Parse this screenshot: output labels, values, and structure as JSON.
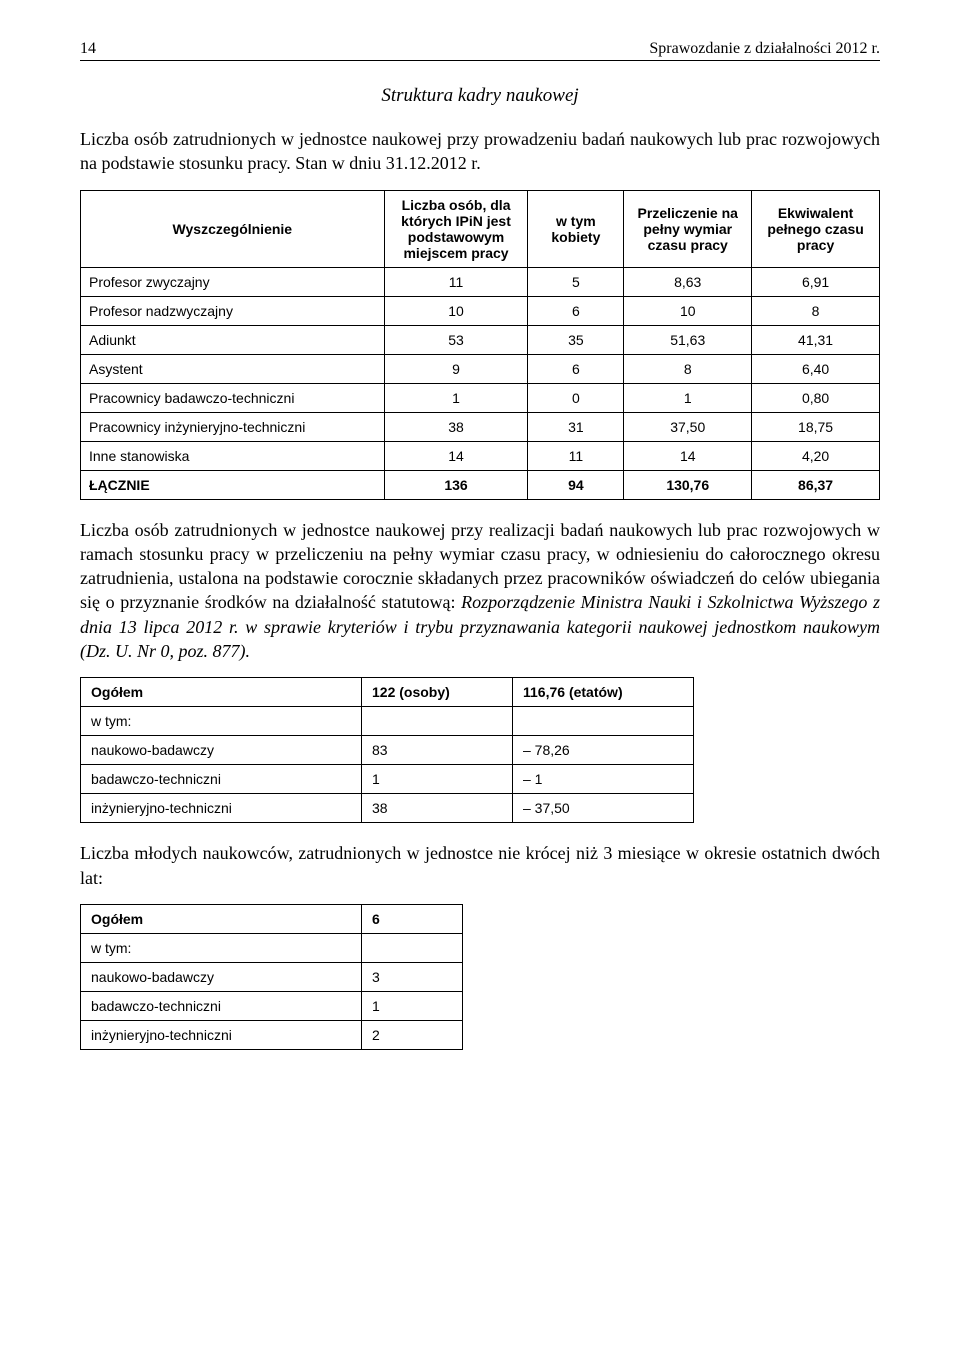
{
  "header": {
    "page_number": "14",
    "running_title": "Sprawozdanie z działalności 2012 r."
  },
  "section_title": "Struktura kadry naukowej",
  "intro_paragraph": "Liczba osób zatrudnionych w jednostce naukowej przy prowadzeniu badań naukowych lub prac rozwojowych na podstawie stosunku pracy. Stan w dniu 31.12.2012 r.",
  "table1": {
    "headers": {
      "col1": "Wyszczególnienie",
      "col2": "Liczba osób, dla których IPiN jest podstawowym miejscem pracy",
      "col3": "w tym kobiety",
      "col4": "Przeliczenie na pełny wymiar czasu pracy",
      "col5": "Ekwiwalent pełnego czasu pracy"
    },
    "rows": [
      {
        "label": "Profesor zwyczajny",
        "c2": "11",
        "c3": "5",
        "c4": "8,63",
        "c5": "6,91"
      },
      {
        "label": "Profesor nadzwyczajny",
        "c2": "10",
        "c3": "6",
        "c4": "10",
        "c5": "8"
      },
      {
        "label": "Adiunkt",
        "c2": "53",
        "c3": "35",
        "c4": "51,63",
        "c5": "41,31"
      },
      {
        "label": "Asystent",
        "c2": "9",
        "c3": "6",
        "c4": "8",
        "c5": "6,40"
      },
      {
        "label": "Pracownicy badawczo-techniczni",
        "c2": "1",
        "c3": "0",
        "c4": "1",
        "c5": "0,80"
      },
      {
        "label": "Pracownicy inżynieryjno-techniczni",
        "c2": "38",
        "c3": "31",
        "c4": "37,50",
        "c5": "18,75"
      },
      {
        "label": "Inne stanowiska",
        "c2": "14",
        "c3": "11",
        "c4": "14",
        "c5": "4,20"
      }
    ],
    "total": {
      "label": "ŁĄCZNIE",
      "c2": "136",
      "c3": "94",
      "c4": "130,76",
      "c5": "86,37"
    }
  },
  "mid_para_plain": "Liczba osób zatrudnionych w jednostce naukowej przy realizacji badań naukowych lub prac rozwojowych w ramach stosunku pracy w przeliczeniu na pełny wymiar czasu pracy, w odniesieniu do całorocznego okresu zatrudnienia, ustalona na podstawie corocznie składanych przez pracowników oświadczeń do celów ubiegania się o przyznanie środków na działalność statutową: ",
  "mid_para_italic": "Rozporządzenie Ministra Nauki i Szkolnictwa Wyższego z dnia 13 lipca 2012 r. w sprawie kryteriów i trybu przyznawania kategorii naukowej jednostkom naukowym (Dz. U. Nr 0, poz. 877).",
  "table2": {
    "col_widths": {
      "c1": "260px",
      "c2": "130px",
      "c3": "160px"
    },
    "rows": [
      {
        "label": "Ogółem",
        "v1": "122 (osoby)",
        "v2": "116,76 (etatów)",
        "bold": true
      },
      {
        "label": "w tym:",
        "v1": "",
        "v2": ""
      },
      {
        "label": "naukowo-badawczy",
        "v1": "83",
        "v2": "– 78,26"
      },
      {
        "label": "badawczo-techniczni",
        "v1": "1",
        "v2": "– 1"
      },
      {
        "label": "inżynieryjno-techniczni",
        "v1": "38",
        "v2": "– 37,50"
      }
    ]
  },
  "young_para": "Liczba młodych naukowców, zatrudnionych w jednostce nie krócej niż 3 miesiące w okresie ostatnich dwóch lat:",
  "table3": {
    "col_widths": {
      "c1": "260px",
      "c2": "80px"
    },
    "rows": [
      {
        "label": "Ogółem",
        "v": "6",
        "bold": true
      },
      {
        "label": "w tym:",
        "v": ""
      },
      {
        "label": "naukowo-badawczy",
        "v": "3"
      },
      {
        "label": "badawczo-techniczni",
        "v": "1"
      },
      {
        "label": "inżynieryjno-techniczni",
        "v": "2"
      }
    ]
  }
}
